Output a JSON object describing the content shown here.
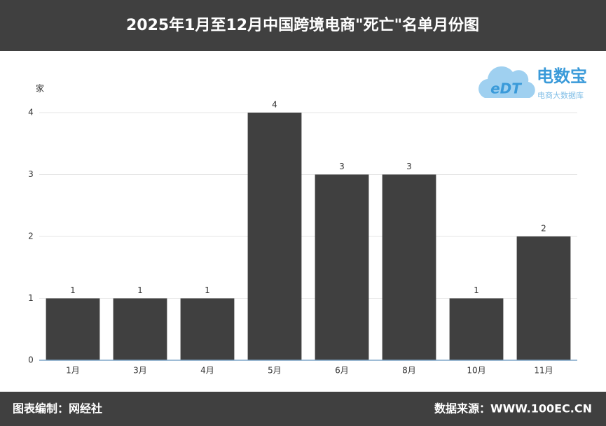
{
  "chart_data": {
    "type": "bar",
    "title": "2025年1月至12月中国跨境电商\"死亡\"名单月份图",
    "y_label": "家",
    "categories": [
      "1月",
      "3月",
      "4月",
      "5月",
      "6月",
      "8月",
      "10月",
      "11月"
    ],
    "values": [
      1,
      1,
      1,
      4,
      3,
      3,
      1,
      2
    ],
    "color": "#404040",
    "ylim": [
      0,
      4
    ],
    "yticks": [
      0,
      1,
      2,
      3,
      4
    ],
    "grid": true
  },
  "footer": {
    "left": "图表编制：网经社",
    "right": "数据来源：WWW.100EC.CN"
  },
  "logo": {
    "mark": "eDT",
    "name": "电数宝",
    "tagline": "电商大数据库"
  }
}
